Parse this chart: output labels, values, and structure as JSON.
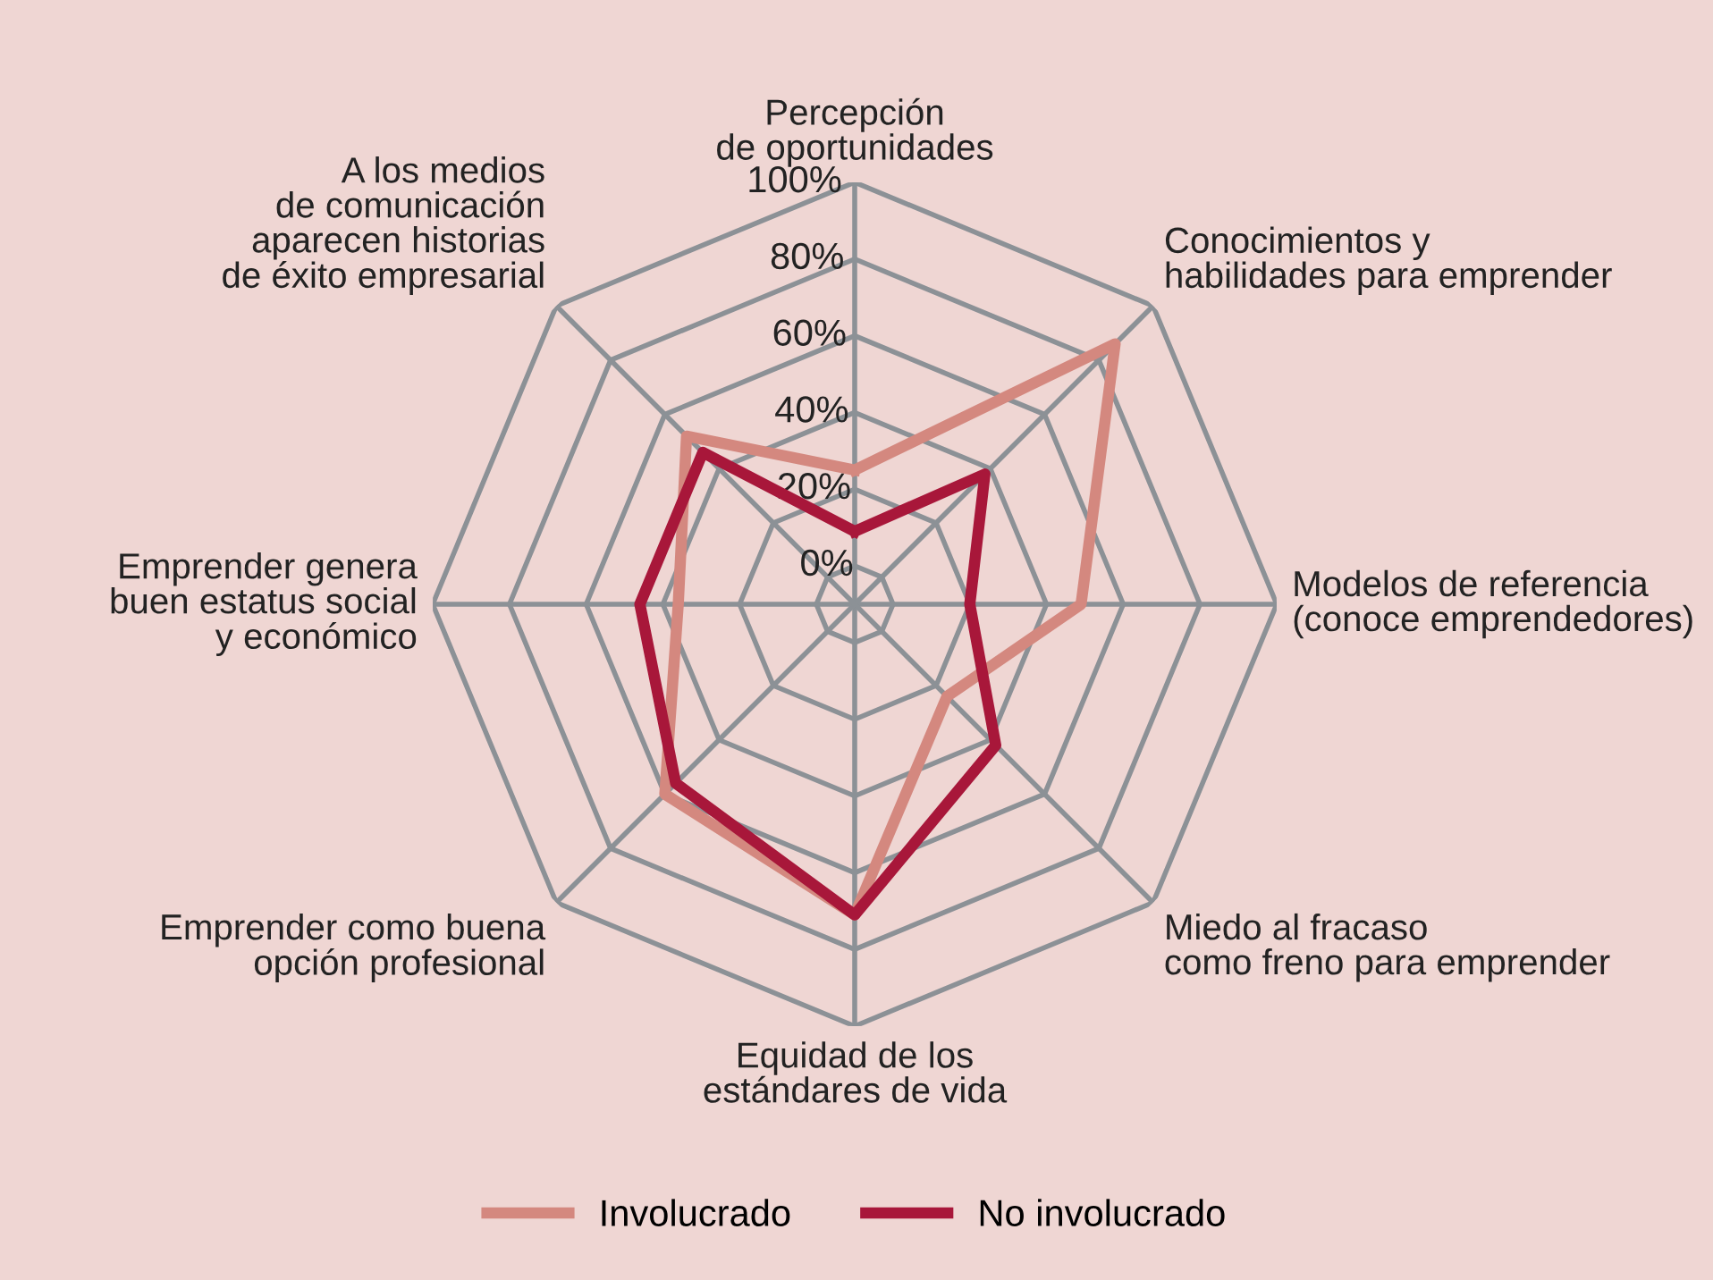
{
  "chart_data": {
    "type": "radar",
    "categories": [
      "Percepción\nde oportunidades",
      "Conocimientos y\nhabilidades para emprender",
      "Modelos de referencia\n(conoce emprendedores)",
      "Miedo al fracaso\ncomo freno para emprender",
      "Equidad de los\nestándares de vida",
      "Emprender como buena\nopción profesional",
      "Emprender genera\nbuen estatus social\ny económico",
      "A los medios\nde comunicación\naparecen historias\nde éxito empresarial"
    ],
    "series": [
      {
        "name": "Involucrado",
        "color": "#d4887f",
        "values": [
          25,
          86,
          49,
          24,
          71,
          60,
          36,
          52
        ]
      },
      {
        "name": "No involucrado",
        "color": "#a8173a",
        "values": [
          9,
          38,
          20,
          42,
          71,
          56,
          46,
          46
        ]
      }
    ],
    "ylim": [
      -10,
      100
    ],
    "yticks": [
      {
        "value": 0,
        "label": "0%"
      },
      {
        "value": 20,
        "label": "20%"
      },
      {
        "value": 40,
        "label": "40%"
      },
      {
        "value": 60,
        "label": "60%"
      },
      {
        "value": 80,
        "label": "80%"
      },
      {
        "value": 100,
        "label": "100%"
      }
    ],
    "grid": true,
    "legend": "bottom",
    "marker": "none",
    "line_style": "solid"
  }
}
